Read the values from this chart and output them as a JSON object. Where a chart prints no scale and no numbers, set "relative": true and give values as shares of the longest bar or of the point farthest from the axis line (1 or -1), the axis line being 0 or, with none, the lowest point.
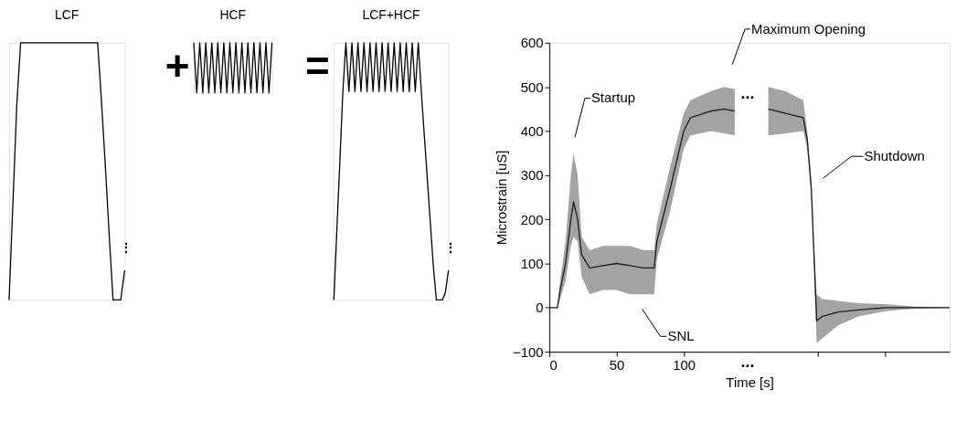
{
  "chart_data": [
    {
      "type": "line",
      "title": "LCF",
      "relative": true,
      "tick_labels": false,
      "categories": [
        null,
        null,
        null,
        null,
        null,
        null,
        null,
        null,
        null,
        null,
        null,
        null,
        null,
        null,
        null,
        null,
        null,
        null,
        null,
        null,
        null,
        null,
        null,
        null,
        null,
        null,
        null,
        null,
        null,
        null,
        null
      ],
      "series": [
        {
          "color": "#000000",
          "values": [
            0,
            0.38,
            0.76,
            1,
            1,
            1,
            1,
            1,
            1,
            1,
            1,
            1,
            1,
            1,
            1,
            1,
            1,
            1,
            1,
            1,
            1,
            1,
            1,
            1,
            0.77,
            0.52,
            0.25,
            0,
            0,
            0,
            0.115
          ]
        }
      ],
      "annotations": [
        "⋮"
      ]
    },
    {
      "type": "line",
      "title": "HCF",
      "relative": true,
      "tick_labels": false,
      "categories": [
        null,
        null,
        null,
        null,
        null,
        null,
        null,
        null,
        null,
        null,
        null,
        null,
        null,
        null,
        null,
        null,
        null,
        null,
        null,
        null,
        null,
        null,
        null,
        null,
        null,
        null,
        null
      ],
      "series": [
        {
          "color": "#000000",
          "values": [
            1,
            0,
            1,
            0,
            1,
            0,
            1,
            0,
            1,
            0,
            1,
            0,
            1,
            0,
            1,
            0,
            1,
            0,
            1,
            0,
            1,
            0,
            1,
            0,
            1,
            0,
            1
          ]
        }
      ],
      "annotations": [
        "+"
      ]
    },
    {
      "type": "line",
      "title": "LCF+HCF",
      "relative": true,
      "tick_labels": false,
      "categories": [
        null,
        null,
        null,
        null,
        null,
        null,
        null,
        null,
        null,
        null,
        null,
        null,
        null,
        null,
        null,
        null,
        null,
        null,
        null,
        null,
        null,
        null,
        null,
        null,
        null,
        null,
        null,
        null,
        null,
        null,
        null,
        null,
        null,
        null,
        null,
        null,
        null,
        null,
        null
      ],
      "series": [
        {
          "color": "#000000",
          "values": [
            0,
            0.27,
            0.54,
            0.81,
            1,
            0.81,
            1,
            0.81,
            1,
            0.81,
            1,
            0.81,
            1,
            0.81,
            1,
            0.81,
            1,
            0.81,
            1,
            0.81,
            1,
            0.81,
            1,
            0.81,
            1,
            0.81,
            1,
            0.81,
            1,
            0.81,
            0.64,
            0.47,
            0.3,
            0.13,
            0,
            0,
            0,
            0.03,
            0.115
          ]
        }
      ],
      "annotations": [
        "=",
        "⋮"
      ]
    },
    {
      "type": "line",
      "xlabel": "Time [s]",
      "ylabel": "Microstrain [uS]",
      "grid": false,
      "xlim": [
        0,
        298
      ],
      "xticks": [
        0,
        50,
        100,
        {
          "value": 200,
          "label": null
        },
        {
          "value": 250,
          "label": null
        }
      ],
      "ylim": [
        -100,
        600
      ],
      "yticks": [
        -100,
        0,
        100,
        200,
        300,
        400,
        500,
        600
      ],
      "x": [
        0,
        6,
        8,
        12,
        16,
        18,
        21,
        24,
        30,
        40,
        50,
        60,
        70,
        78,
        80,
        90,
        100,
        105,
        120,
        130,
        138,
        150,
        163,
        176,
        189,
        192,
        195,
        197,
        199,
        203,
        215,
        230,
        250,
        270,
        298
      ],
      "series": [
        {
          "color": "#1a1a1a",
          "values": [
            0,
            0,
            40,
            100,
            200,
            240,
            200,
            120,
            90,
            95,
            100,
            95,
            90,
            90,
            150,
            270,
            400,
            430,
            445,
            450,
            445,
            null,
            450,
            440,
            430,
            380,
            270,
            120,
            -30,
            -20,
            -10,
            -5,
            0,
            0,
            0
          ],
          "lower": [
            0,
            0,
            20,
            60,
            140,
            160,
            150,
            70,
            30,
            40,
            40,
            30,
            30,
            30,
            110,
            220,
            360,
            390,
            400,
            395,
            390,
            null,
            390,
            395,
            400,
            360,
            255,
            100,
            -80,
            -70,
            -40,
            -20,
            -8,
            -3,
            0
          ],
          "upper": [
            0,
            0,
            60,
            150,
            300,
            350,
            300,
            160,
            130,
            140,
            140,
            140,
            130,
            130,
            190,
            320,
            440,
            470,
            490,
            500,
            495,
            null,
            500,
            490,
            470,
            400,
            285,
            140,
            30,
            20,
            15,
            10,
            8,
            3,
            0
          ]
        }
      ],
      "annotations": [
        "Startup",
        "Maximum Opening",
        "Shutdown",
        "SNL",
        "...",
        "..."
      ]
    }
  ]
}
